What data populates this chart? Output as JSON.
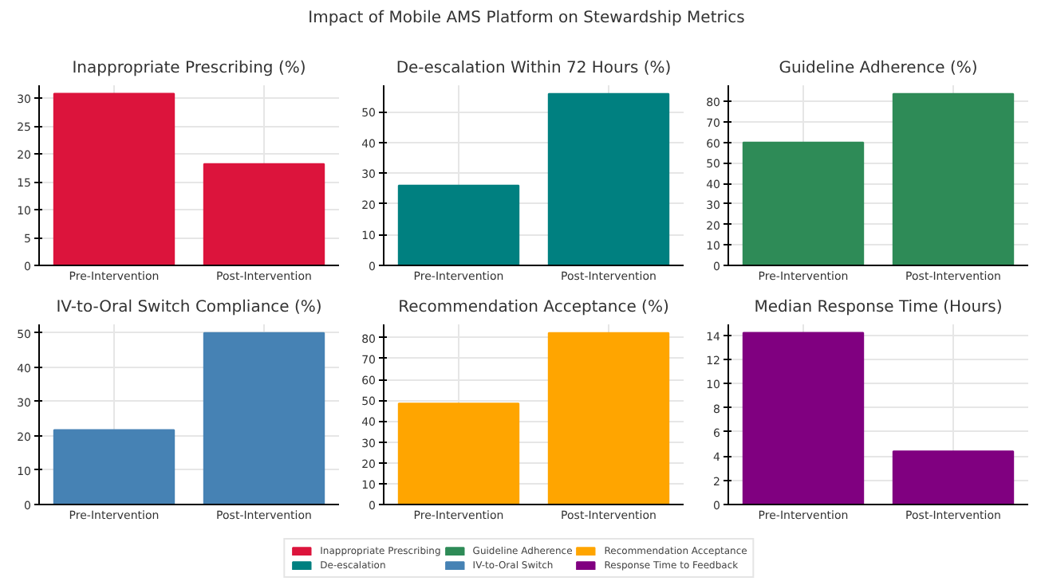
{
  "chart_data": [
    {
      "type": "bar",
      "title": "Inappropriate Prescribing (%)",
      "annotations": [
        "Impact of Mobile AMS Platform on Stewardship Metrics"
      ],
      "categories": [
        "Pre-Intervention",
        "Post-Intervention"
      ],
      "series": [
        {
          "name": "Inappropriate Prescribing",
          "color": "#dc143c",
          "values": [
            30.8,
            18.2
          ]
        }
      ],
      "ylim": [
        0,
        32.3
      ],
      "yticks": [
        0,
        5,
        10,
        15,
        20,
        25,
        30
      ],
      "grid": true,
      "legend": "bottom"
    },
    {
      "type": "bar",
      "title": "De-escalation Within 72 Hours (%)",
      "categories": [
        "Pre-Intervention",
        "Post-Intervention"
      ],
      "series": [
        {
          "name": "De-escalation",
          "color": "#008080",
          "values": [
            26,
            55.8
          ]
        }
      ],
      "ylim": [
        0,
        58.6
      ],
      "yticks": [
        0,
        10,
        20,
        30,
        40,
        50
      ],
      "grid": true,
      "legend": "bottom"
    },
    {
      "type": "bar",
      "title": "Guideline Adherence (%)",
      "categories": [
        "Pre-Intervention",
        "Post-Intervention"
      ],
      "series": [
        {
          "name": "Guideline Adherence",
          "color": "#2e8b57",
          "values": [
            60,
            83.7
          ]
        }
      ],
      "ylim": [
        0,
        87.9
      ],
      "yticks": [
        0,
        10,
        20,
        30,
        40,
        50,
        60,
        70,
        80
      ],
      "grid": true,
      "legend": "bottom"
    },
    {
      "type": "bar",
      "title": "IV-to-Oral Switch Compliance (%)",
      "categories": [
        "Pre-Intervention",
        "Post-Intervention"
      ],
      "series": [
        {
          "name": "IV-to-Oral Switch",
          "color": "#4682b4",
          "values": [
            21.7,
            50
          ]
        }
      ],
      "ylim": [
        0,
        52.5
      ],
      "yticks": [
        0,
        10,
        20,
        30,
        40,
        50
      ],
      "grid": true,
      "legend": "bottom"
    },
    {
      "type": "bar",
      "title": "Recommendation Acceptance (%)",
      "categories": [
        "Pre-Intervention",
        "Post-Intervention"
      ],
      "series": [
        {
          "name": "Recommendation Acceptance",
          "color": "#ffa500",
          "values": [
            48.5,
            82.3
          ]
        }
      ],
      "ylim": [
        0,
        86.4
      ],
      "yticks": [
        0,
        10,
        20,
        30,
        40,
        50,
        60,
        70,
        80
      ],
      "grid": true,
      "legend": "bottom"
    },
    {
      "type": "bar",
      "title": "Median Response Time (Hours)",
      "categories": [
        "Pre-Intervention",
        "Post-Intervention"
      ],
      "series": [
        {
          "name": "Response Time to Feedback",
          "color": "#800080",
          "values": [
            14.2,
            4.4
          ]
        }
      ],
      "ylim": [
        0,
        14.9
      ],
      "yticks": [
        0,
        2,
        4,
        6,
        8,
        10,
        12,
        14
      ],
      "grid": true,
      "legend": "bottom"
    }
  ]
}
